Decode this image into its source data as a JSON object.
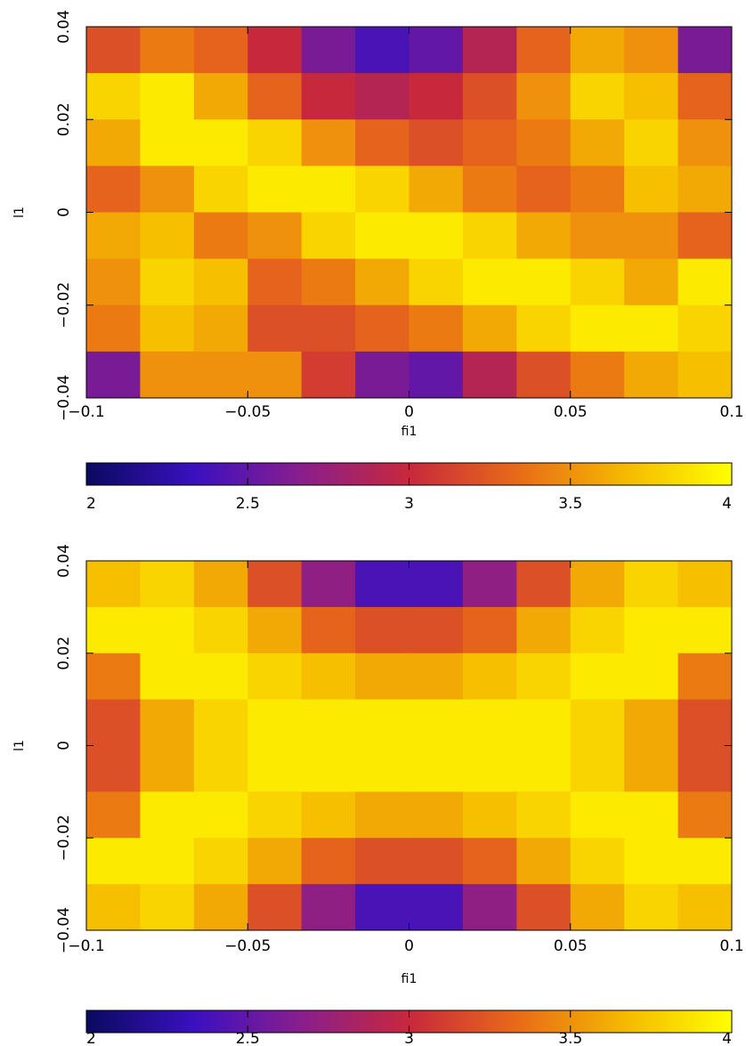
{
  "chart_data": [
    {
      "type": "heatmap",
      "xlabel": "fi1",
      "ylabel": "l1",
      "xlim": [
        -0.1,
        0.1
      ],
      "ylim": [
        -0.04,
        0.04
      ],
      "xticks": [
        {
          "value": -0.1,
          "label": "−0.1"
        },
        {
          "value": -0.05,
          "label": "−0.05"
        },
        0,
        0.05,
        0.1
      ],
      "yticks": [
        {
          "value": -0.04,
          "label": "−0.04"
        },
        {
          "value": -0.02,
          "label": "−0.02"
        },
        0,
        0.02,
        0.04
      ],
      "zlim": [
        2,
        4
      ],
      "zticks": [
        2,
        2.5,
        3,
        3.5,
        4
      ],
      "colorscale": [
        "#0a0a60",
        "#3a10c0",
        "#8a1e8c",
        "#c8283c",
        "#e86a18",
        "#f5b800",
        "#ffff00"
      ],
      "z": [
        [
          3.2,
          3.4,
          3.3,
          3.0,
          2.6,
          2.4,
          2.5,
          2.9,
          3.3,
          3.6,
          3.5,
          2.6
        ],
        [
          3.8,
          3.9,
          3.6,
          3.3,
          3.0,
          2.9,
          3.0,
          3.2,
          3.5,
          3.8,
          3.7,
          3.3
        ],
        [
          3.6,
          3.9,
          3.9,
          3.8,
          3.5,
          3.3,
          3.2,
          3.3,
          3.4,
          3.6,
          3.8,
          3.5
        ],
        [
          3.3,
          3.5,
          3.8,
          3.9,
          3.9,
          3.8,
          3.6,
          3.4,
          3.3,
          3.4,
          3.7,
          3.6
        ],
        [
          3.6,
          3.7,
          3.4,
          3.5,
          3.8,
          3.9,
          3.9,
          3.8,
          3.6,
          3.5,
          3.5,
          3.3
        ],
        [
          3.5,
          3.8,
          3.7,
          3.3,
          3.4,
          3.6,
          3.8,
          3.9,
          3.9,
          3.8,
          3.6,
          3.9
        ],
        [
          3.4,
          3.7,
          3.6,
          3.2,
          3.2,
          3.3,
          3.4,
          3.6,
          3.8,
          3.9,
          3.9,
          3.8
        ],
        [
          2.6,
          3.5,
          3.5,
          3.5,
          3.1,
          2.6,
          2.5,
          2.9,
          3.2,
          3.4,
          3.6,
          3.7
        ]
      ]
    },
    {
      "type": "heatmap",
      "xlabel": "fi1",
      "ylabel": "l1",
      "xlim": [
        -0.1,
        0.1
      ],
      "ylim": [
        -0.04,
        0.04
      ],
      "xticks": [
        {
          "value": -0.1,
          "label": "−0.1"
        },
        {
          "value": -0.05,
          "label": "−0.05"
        },
        0,
        0.05,
        0.1
      ],
      "yticks": [
        {
          "value": -0.04,
          "label": "−0.04"
        },
        {
          "value": -0.02,
          "label": "−0.02"
        },
        0,
        0.02,
        0.04
      ],
      "zlim": [
        2,
        4
      ],
      "zticks": [
        2,
        2.5,
        3,
        3.5,
        4
      ],
      "colorscale": [
        "#0a0a60",
        "#3a10c0",
        "#8a1e8c",
        "#c8283c",
        "#e86a18",
        "#f5b800",
        "#ffff00"
      ],
      "z": [
        [
          3.7,
          3.8,
          3.6,
          3.2,
          2.7,
          2.4,
          2.4,
          2.7,
          3.2,
          3.6,
          3.8,
          3.7
        ],
        [
          3.9,
          3.9,
          3.8,
          3.6,
          3.3,
          3.2,
          3.2,
          3.3,
          3.6,
          3.8,
          3.9,
          3.9
        ],
        [
          3.4,
          3.9,
          3.9,
          3.8,
          3.7,
          3.6,
          3.6,
          3.7,
          3.8,
          3.9,
          3.9,
          3.4
        ],
        [
          3.2,
          3.6,
          3.8,
          3.9,
          3.9,
          3.9,
          3.9,
          3.9,
          3.9,
          3.8,
          3.6,
          3.2
        ],
        [
          3.2,
          3.6,
          3.8,
          3.9,
          3.9,
          3.9,
          3.9,
          3.9,
          3.9,
          3.8,
          3.6,
          3.2
        ],
        [
          3.4,
          3.9,
          3.9,
          3.8,
          3.7,
          3.6,
          3.6,
          3.7,
          3.8,
          3.9,
          3.9,
          3.4
        ],
        [
          3.9,
          3.9,
          3.8,
          3.6,
          3.3,
          3.2,
          3.2,
          3.3,
          3.6,
          3.8,
          3.9,
          3.9
        ],
        [
          3.7,
          3.8,
          3.6,
          3.2,
          2.7,
          2.4,
          2.4,
          2.7,
          3.2,
          3.6,
          3.8,
          3.7
        ]
      ]
    }
  ]
}
